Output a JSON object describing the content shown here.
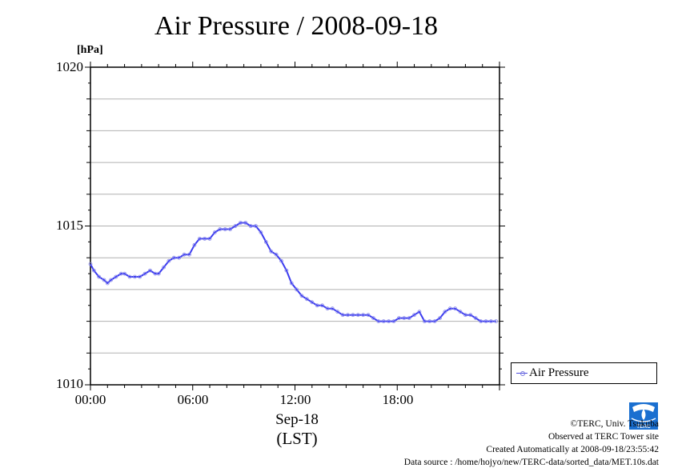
{
  "chart_data": {
    "type": "line",
    "title": "Air Pressure / 2008-09-18",
    "ylabel": "[hPa]",
    "ylim": [
      1010,
      1020
    ],
    "yticks": [
      "1010",
      "1015",
      "1020"
    ],
    "xlim": [
      0,
      24
    ],
    "xticks": [
      "00:00",
      "06:00",
      "12:00",
      "18:00"
    ],
    "xlabel_date": "Sep-18",
    "xlabel_zone": "(LST)",
    "grid": true,
    "legend_position": "bottom-right",
    "series": [
      {
        "name": "Air Pressure",
        "color": "#3a3af0",
        "x": [
          0.0,
          0.2,
          0.5,
          0.8,
          1.0,
          1.2,
          1.5,
          1.8,
          2.0,
          2.3,
          2.6,
          2.9,
          3.2,
          3.5,
          3.8,
          4.0,
          4.3,
          4.6,
          4.9,
          5.2,
          5.5,
          5.8,
          6.1,
          6.4,
          6.7,
          7.0,
          7.3,
          7.6,
          7.9,
          8.2,
          8.5,
          8.8,
          9.1,
          9.4,
          9.7,
          10.0,
          10.3,
          10.6,
          10.9,
          11.2,
          11.5,
          11.8,
          12.1,
          12.4,
          12.7,
          13.0,
          13.3,
          13.6,
          13.9,
          14.2,
          14.5,
          14.8,
          15.1,
          15.4,
          15.7,
          16.0,
          16.3,
          16.6,
          16.9,
          17.2,
          17.5,
          17.8,
          18.1,
          18.4,
          18.7,
          19.0,
          19.3,
          19.6,
          19.9,
          20.2,
          20.5,
          20.8,
          21.1,
          21.4,
          21.7,
          22.0,
          22.3,
          22.6,
          22.9,
          23.2,
          23.5,
          23.8
        ],
        "values": [
          1013.8,
          1013.6,
          1013.4,
          1013.3,
          1013.2,
          1013.3,
          1013.4,
          1013.5,
          1013.5,
          1013.4,
          1013.4,
          1013.4,
          1013.5,
          1013.6,
          1013.5,
          1013.5,
          1013.7,
          1013.9,
          1014.0,
          1014.0,
          1014.1,
          1014.1,
          1014.4,
          1014.6,
          1014.6,
          1014.6,
          1014.8,
          1014.9,
          1014.9,
          1014.9,
          1015.0,
          1015.1,
          1015.1,
          1015.0,
          1015.0,
          1014.8,
          1014.5,
          1014.2,
          1014.1,
          1013.9,
          1013.6,
          1013.2,
          1013.0,
          1012.8,
          1012.7,
          1012.6,
          1012.5,
          1012.5,
          1012.4,
          1012.4,
          1012.3,
          1012.2,
          1012.2,
          1012.2,
          1012.2,
          1012.2,
          1012.2,
          1012.1,
          1012.0,
          1012.0,
          1012.0,
          1012.0,
          1012.1,
          1012.1,
          1012.1,
          1012.2,
          1012.3,
          1012.0,
          1012.0,
          1012.0,
          1012.1,
          1012.3,
          1012.4,
          1012.4,
          1012.3,
          1012.2,
          1012.2,
          1012.1,
          1012.0,
          1012.0,
          1012.0,
          1012.0
        ]
      }
    ]
  },
  "legend": {
    "label": "Air Pressure"
  },
  "credits": {
    "copyright": "©TERC, Univ. Tsukuba",
    "observed": "Observed at TERC Tower site",
    "created": "Created Automatically at 2008-09-18/23:55:42",
    "source": "Data source : /home/hojyo/new/TERC-data/sorted_data/MET.10s.dat"
  },
  "logo": {
    "text": "TERC",
    "color": "#1a6fd0"
  }
}
